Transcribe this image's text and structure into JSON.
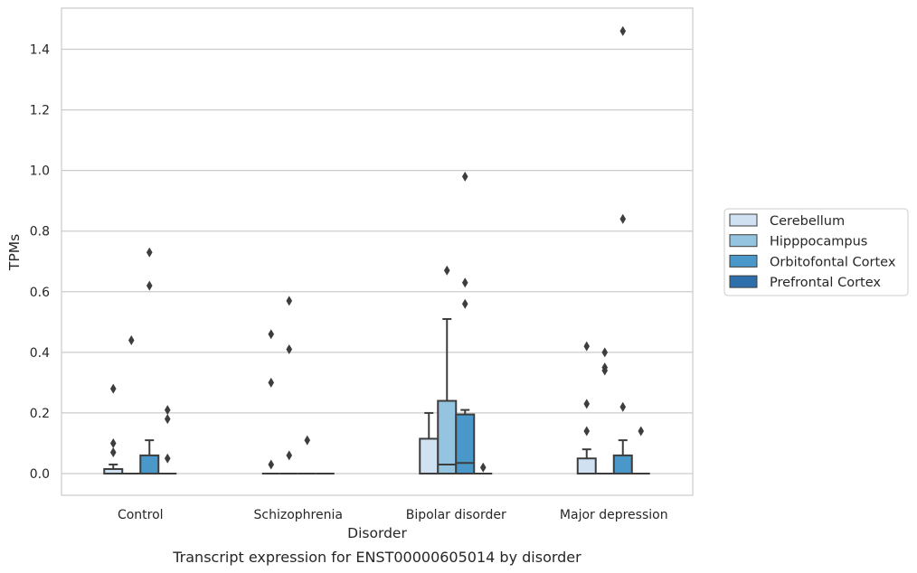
{
  "chart_data": {
    "type": "box",
    "caption": "Transcript expression for ENST00000605014 by disorder",
    "xlabel": "Disorder",
    "ylabel": "TPMs",
    "ylim": [
      -0.07,
      1.54
    ],
    "yticks": [
      "0.0",
      "0.2",
      "0.4",
      "0.6",
      "0.8",
      "1.0",
      "1.2",
      "1.4"
    ],
    "grid": "horizontal",
    "legend_position": "right",
    "categories": [
      "Control",
      "Schizophrenia",
      "Bipolar disorder",
      "Major depression"
    ],
    "series": [
      {
        "name": "Cerebellum",
        "color": "#d0e1f2"
      },
      {
        "name": "Hipppocampus",
        "color": "#94c4df"
      },
      {
        "name": "Orbitofontal Cortex",
        "color": "#4a98c9"
      },
      {
        "name": "Prefrontal Cortex",
        "color": "#2e6fab"
      }
    ],
    "boxes": [
      [
        {
          "q1": 0,
          "median": 0,
          "q3": 0.015,
          "whisker_low": 0,
          "whisker_high": 0.03,
          "outliers": [
            0.28,
            0.1,
            0.07
          ]
        },
        {
          "q1": 0,
          "median": 0,
          "q3": 0,
          "whisker_low": 0,
          "whisker_high": 0,
          "outliers": [
            0.44
          ]
        },
        {
          "q1": 0,
          "median": 0,
          "q3": 0.06,
          "whisker_low": 0,
          "whisker_high": 0.11,
          "outliers": [
            0.73,
            0.62
          ]
        },
        {
          "q1": 0,
          "median": 0,
          "q3": 0,
          "whisker_low": 0,
          "whisker_high": 0,
          "outliers": [
            0.21,
            0.18,
            0.05
          ]
        }
      ],
      [
        {
          "q1": 0,
          "median": 0,
          "q3": 0,
          "whisker_low": 0,
          "whisker_high": 0,
          "outliers": [
            0.46,
            0.3,
            0.03
          ]
        },
        {
          "q1": 0,
          "median": 0,
          "q3": 0,
          "whisker_low": 0,
          "whisker_high": 0,
          "outliers": [
            0.57,
            0.41,
            0.06
          ]
        },
        {
          "q1": 0,
          "median": 0,
          "q3": 0,
          "whisker_low": 0,
          "whisker_high": 0,
          "outliers": [
            0.11
          ]
        },
        {
          "q1": 0,
          "median": 0,
          "q3": 0,
          "whisker_low": 0,
          "whisker_high": 0,
          "outliers": []
        }
      ],
      [
        {
          "q1": 0,
          "median": 0,
          "q3": 0.115,
          "whisker_low": 0,
          "whisker_high": 0.2,
          "outliers": []
        },
        {
          "q1": 0,
          "median": 0.03,
          "q3": 0.24,
          "whisker_low": 0,
          "whisker_high": 0.51,
          "outliers": [
            0.67
          ]
        },
        {
          "q1": 0,
          "median": 0.035,
          "q3": 0.195,
          "whisker_low": 0,
          "whisker_high": 0.21,
          "outliers": [
            0.98,
            0.63,
            0.56
          ]
        },
        {
          "q1": 0,
          "median": 0,
          "q3": 0,
          "whisker_low": 0,
          "whisker_high": 0,
          "outliers": [
            0.02
          ]
        }
      ],
      [
        {
          "q1": 0,
          "median": 0,
          "q3": 0.05,
          "whisker_low": 0,
          "whisker_high": 0.08,
          "outliers": [
            0.42,
            0.23,
            0.14
          ]
        },
        {
          "q1": 0,
          "median": 0,
          "q3": 0,
          "whisker_low": 0,
          "whisker_high": 0,
          "outliers": [
            0.4,
            0.35,
            0.34
          ]
        },
        {
          "q1": 0,
          "median": 0,
          "q3": 0.06,
          "whisker_low": 0,
          "whisker_high": 0.11,
          "outliers": [
            1.46,
            0.84,
            0.22
          ]
        },
        {
          "q1": 0,
          "median": 0,
          "q3": 0,
          "whisker_low": 0,
          "whisker_high": 0,
          "outliers": [
            0.14
          ]
        }
      ]
    ]
  }
}
